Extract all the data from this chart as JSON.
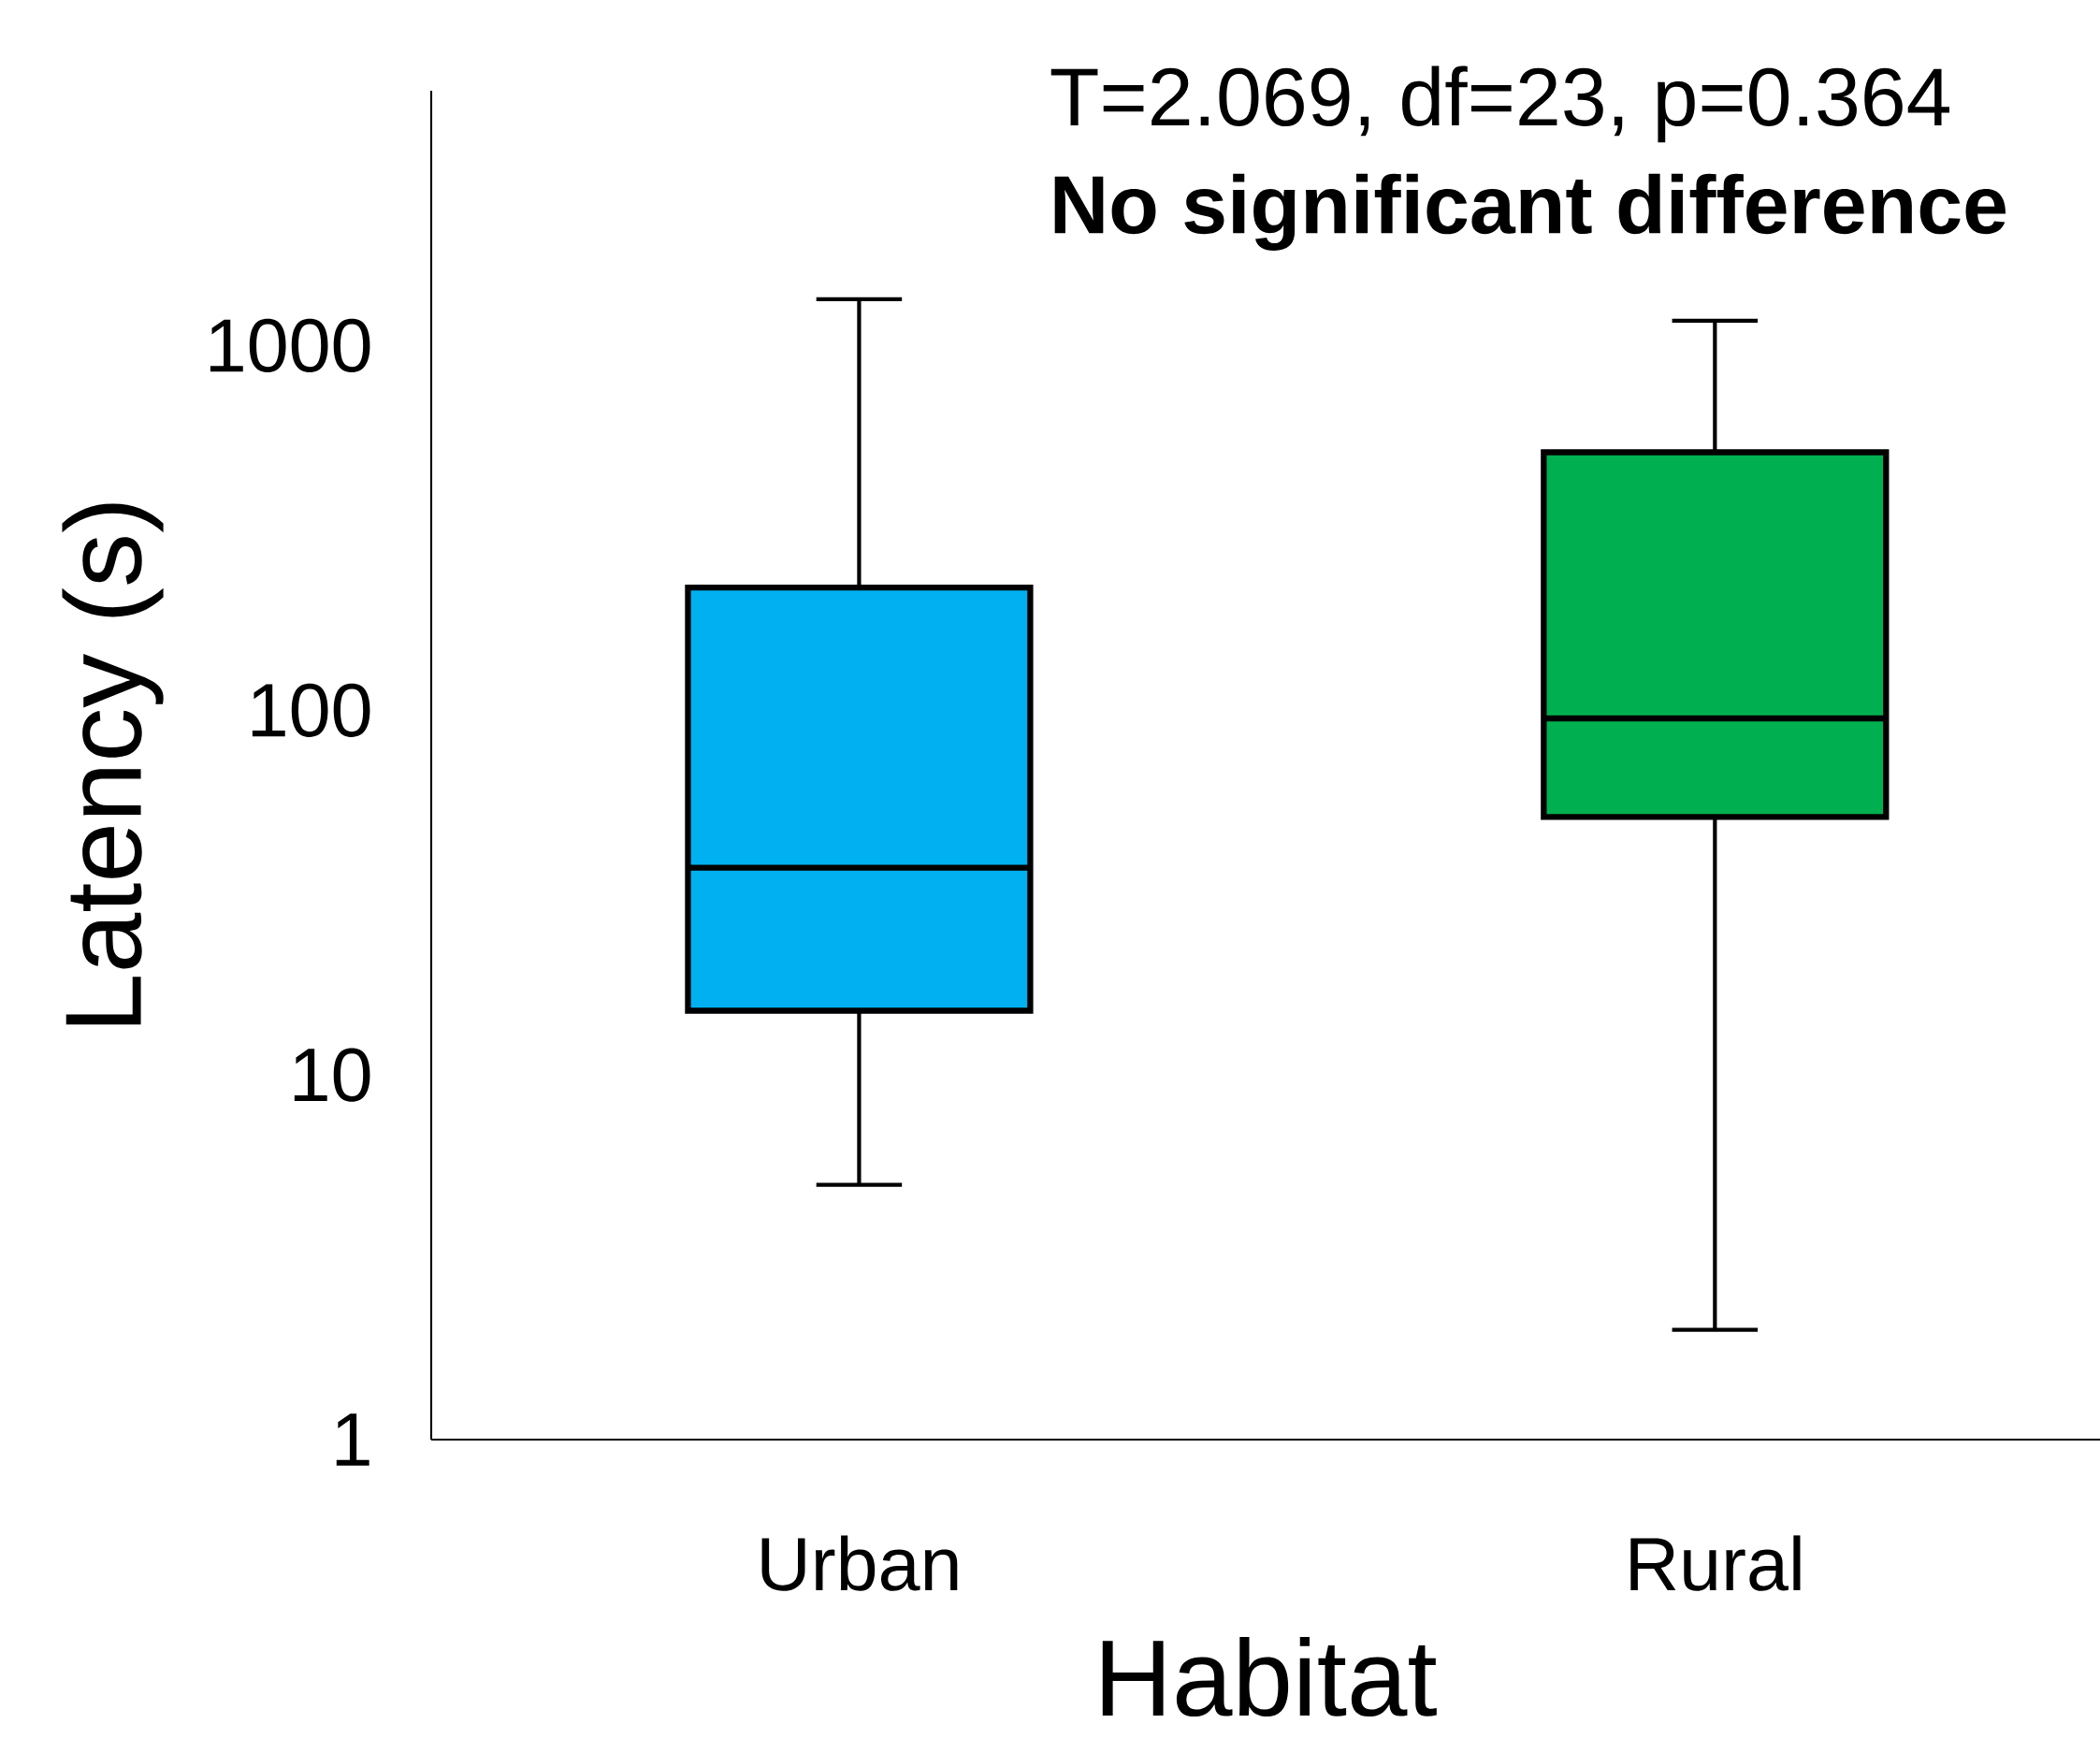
{
  "chart_data": {
    "type": "box",
    "categories": [
      "Urban",
      "Rural"
    ],
    "xlabel": "Habitat",
    "ylabel": "Latency (s)",
    "log": "y",
    "ylim": [
      1,
      5000
    ],
    "yticks": [
      1,
      10,
      100,
      1000
    ],
    "grid": false,
    "colors": [
      "#00b0f0",
      "#00b050"
    ],
    "boxes": [
      {
        "low": 5,
        "q1": 15,
        "median": 37,
        "q3": 217,
        "high": 1340
      },
      {
        "low": 2,
        "q1": 51,
        "median": 95,
        "q3": 510,
        "high": 1170
      }
    ],
    "annotations": [
      "T=2.069, df=23, p=0.364",
      "No significant difference"
    ]
  }
}
